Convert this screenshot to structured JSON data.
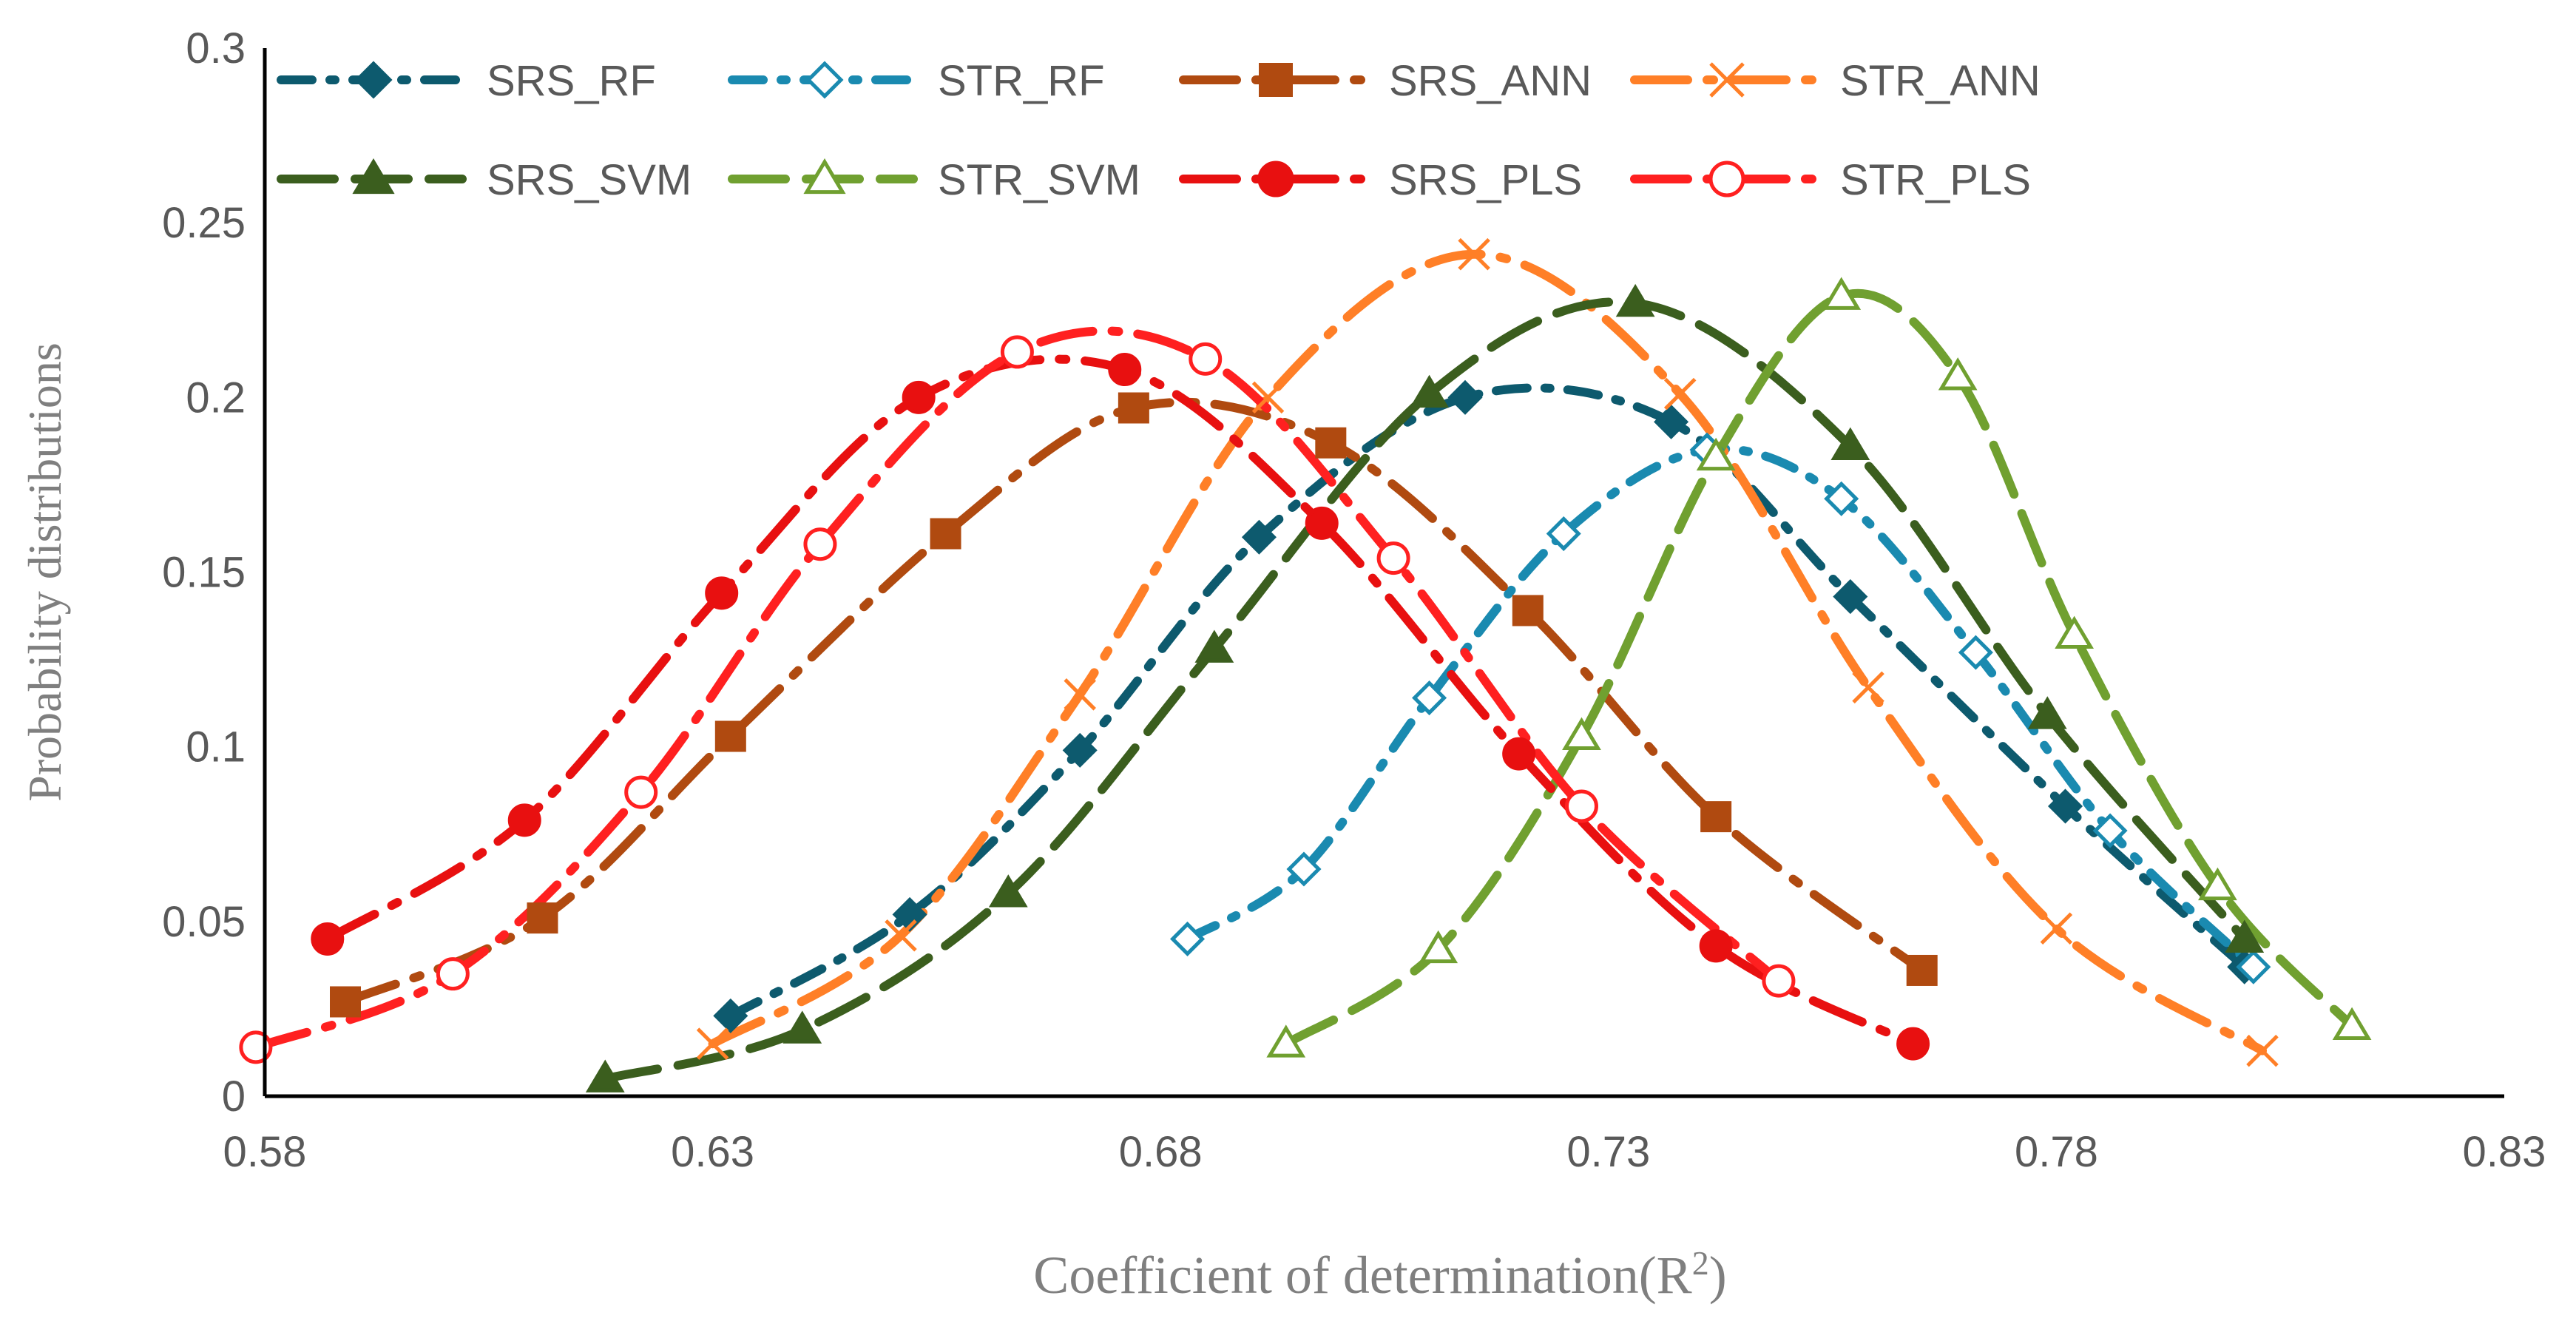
{
  "chart_data": {
    "type": "line",
    "title": "",
    "xlabel": "Coefficient of determination(R",
    "xlabel_sup": "2",
    "xlabel_close": ")",
    "ylabel": "Probability distributions",
    "xlim": [
      0.58,
      0.83
    ],
    "ylim": [
      0,
      0.3
    ],
    "xticks": [
      0.58,
      0.63,
      0.68,
      0.73,
      0.78,
      0.83
    ],
    "yticks": [
      0,
      0.05,
      0.1,
      0.15,
      0.2,
      0.25,
      0.3
    ],
    "xtick_labels": [
      "0.58",
      "0.63",
      "0.68",
      "0.73",
      "0.78",
      "0.83"
    ],
    "ytick_labels": [
      "0",
      "0.05",
      "0.1",
      "0.15",
      "0.2",
      "0.25",
      "0.3"
    ],
    "grid": false,
    "legend_position": "top",
    "series": [
      {
        "name": "SRS_RF",
        "color": "#0d5a6e",
        "marker": "diamond-filled",
        "dash": "dash-dot",
        "x": [
          0.632,
          0.652,
          0.671,
          0.691,
          0.714,
          0.737,
          0.757,
          0.781,
          0.801
        ],
        "y": [
          0.023,
          0.052,
          0.099,
          0.16,
          0.2,
          0.193,
          0.143,
          0.083,
          0.037
        ]
      },
      {
        "name": "STR_RF",
        "color": "#1a8ab0",
        "marker": "diamond-open",
        "dash": "dash-dot",
        "x": [
          0.683,
          0.696,
          0.71,
          0.725,
          0.741,
          0.756,
          0.771,
          0.786,
          0.802
        ],
        "y": [
          0.045,
          0.065,
          0.114,
          0.161,
          0.185,
          0.171,
          0.127,
          0.076,
          0.037
        ]
      },
      {
        "name": "SRS_ANN",
        "color": "#b04a10",
        "marker": "square-filled",
        "dash": "long-dash-dot",
        "x": [
          0.589,
          0.611,
          0.632,
          0.656,
          0.677,
          0.699,
          0.721,
          0.742,
          0.765
        ],
        "y": [
          0.027,
          0.051,
          0.103,
          0.161,
          0.197,
          0.187,
          0.139,
          0.08,
          0.036
        ]
      },
      {
        "name": "STR_ANN",
        "color": "#ff7f27",
        "marker": "cross",
        "dash": "long-dash-dot",
        "x": [
          0.63,
          0.651,
          0.671,
          0.692,
          0.715,
          0.738,
          0.759,
          0.78,
          0.803
        ],
        "y": [
          0.015,
          0.046,
          0.115,
          0.2,
          0.241,
          0.201,
          0.117,
          0.048,
          0.013
        ]
      },
      {
        "name": "SRS_SVM",
        "color": "#3b5e1e",
        "marker": "triangle-filled",
        "dash": "long-dash",
        "x": [
          0.618,
          0.64,
          0.663,
          0.686,
          0.71,
          0.733,
          0.757,
          0.779,
          0.801
        ],
        "y": [
          0.005,
          0.019,
          0.058,
          0.128,
          0.201,
          0.227,
          0.186,
          0.109,
          0.045
        ]
      },
      {
        "name": "STR_SVM",
        "color": "#70a030",
        "marker": "triangle-open",
        "dash": "long-dash",
        "x": [
          0.694,
          0.711,
          0.727,
          0.742,
          0.756,
          0.769,
          0.782,
          0.798,
          0.813
        ],
        "y": [
          0.015,
          0.042,
          0.103,
          0.183,
          0.229,
          0.206,
          0.132,
          0.06,
          0.02
        ]
      },
      {
        "name": "SRS_PLS",
        "color": "#e81010",
        "marker": "circle-filled",
        "dash": "long-dash-dot",
        "x": [
          0.587,
          0.609,
          0.631,
          0.653,
          0.676,
          0.698,
          0.72,
          0.742,
          0.764
        ],
        "y": [
          0.045,
          0.079,
          0.144,
          0.2,
          0.208,
          0.164,
          0.098,
          0.043,
          0.015
        ]
      },
      {
        "name": "STR_PLS",
        "color": "#ff2020",
        "marker": "circle-open",
        "dash": "long-dash-dot",
        "x": [
          0.579,
          0.601,
          0.622,
          0.642,
          0.664,
          0.685,
          0.706,
          0.727,
          0.749
        ],
        "y": [
          0.014,
          0.035,
          0.087,
          0.158,
          0.213,
          0.211,
          0.154,
          0.083,
          0.033
        ]
      }
    ]
  }
}
